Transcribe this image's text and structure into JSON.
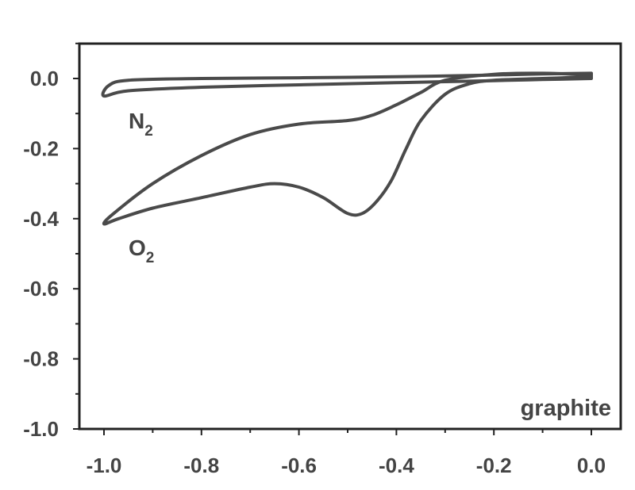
{
  "chart_data": {
    "type": "line",
    "title": "",
    "xlabel": "",
    "ylabel": "",
    "xlim": [
      -1.0,
      0.0
    ],
    "ylim": [
      -1.0,
      0.1
    ],
    "x_reversed": true,
    "xticks": [
      "-1.0",
      "-0.8",
      "-0.6",
      "-0.4",
      "-0.2",
      "0.0"
    ],
    "yticks": [
      "0.0",
      "-0.2",
      "-0.4",
      "-0.6",
      "-0.8",
      "-1.0"
    ],
    "grid": false,
    "line_color": "#4a4a4a",
    "series": [
      {
        "name": "N",
        "subscript": "2",
        "x": [
          0.0,
          -0.1,
          -0.2,
          -0.4,
          -0.6,
          -0.8,
          -0.95,
          -1.0,
          -0.99,
          -0.95,
          -0.8,
          -0.6,
          -0.4,
          -0.2,
          -0.1,
          0.0
        ],
        "y": [
          0.0,
          -0.003,
          -0.006,
          -0.012,
          -0.018,
          -0.025,
          -0.035,
          -0.05,
          -0.02,
          -0.005,
          0.0,
          0.002,
          0.005,
          0.01,
          0.013,
          0.015
        ]
      },
      {
        "name": "O",
        "subscript": "2",
        "x": [
          0.0,
          -0.1,
          -0.2,
          -0.25,
          -0.3,
          -0.35,
          -0.38,
          -0.41,
          -0.44,
          -0.47,
          -0.5,
          -0.55,
          -0.6,
          -0.65,
          -0.7,
          -0.8,
          -0.9,
          -0.97,
          -1.0,
          -0.98,
          -0.9,
          -0.8,
          -0.7,
          -0.6,
          -0.5,
          -0.45,
          -0.4,
          -0.35,
          -0.3,
          -0.2,
          -0.1,
          0.0
        ],
        "y": [
          0.005,
          0.0,
          -0.005,
          -0.015,
          -0.045,
          -0.12,
          -0.2,
          -0.29,
          -0.35,
          -0.385,
          -0.385,
          -0.34,
          -0.31,
          -0.3,
          -0.31,
          -0.34,
          -0.37,
          -0.4,
          -0.415,
          -0.385,
          -0.3,
          -0.22,
          -0.16,
          -0.13,
          -0.12,
          -0.105,
          -0.075,
          -0.04,
          -0.005,
          0.012,
          0.015,
          0.01
        ]
      }
    ],
    "annotations": [
      {
        "text": "graphite",
        "x": -0.06,
        "y": -0.96
      }
    ]
  }
}
